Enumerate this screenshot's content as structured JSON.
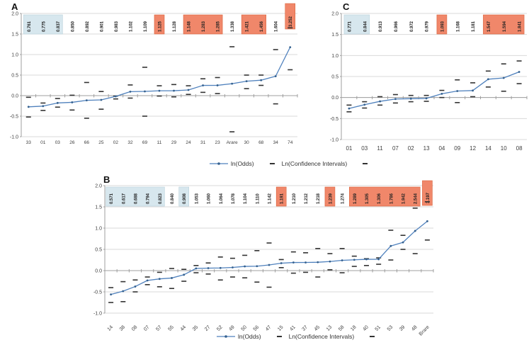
{
  "figure": {
    "panel_A": "A",
    "panel_B": "B",
    "panel_C": "C"
  },
  "legend": {
    "odds": "ln(Odds)",
    "ci": "Ln(Confidence Intervals)",
    "dash": "-"
  },
  "colors": {
    "line": "#4f81bd",
    "ci_dash": "#333333",
    "box_blue": "#d7e7ee",
    "box_blue_border": "#b9d2dc",
    "box_red": "#f0876a",
    "box_red_border": "#d9643e",
    "gridline": "#d9d9d9",
    "axis": "#9f9f9f",
    "text": "#404040"
  },
  "chart_data": [
    {
      "id": "A",
      "type": "line",
      "title": "",
      "xlabel": "",
      "ylabel": "",
      "ylim": [
        -1.0,
        2.0
      ],
      "grid": true,
      "legend_position": "bottom",
      "y_ticks": [
        "2.0",
        "1.5",
        "1.0",
        "0.5",
        "0.0",
        "-0.5",
        "-1.0"
      ],
      "categories": [
        "33",
        "01",
        "03",
        "26",
        "66",
        "25",
        "02",
        "32",
        "69",
        "11",
        "29",
        "24",
        "31",
        "23",
        "Arare",
        "30",
        "68",
        "34",
        "74"
      ],
      "odds_labels": [
        "0.761",
        "0.775",
        "0.837",
        "0.850",
        "0.892",
        "0.901",
        "0.983",
        "1.102",
        "1.109",
        "1.125",
        "1.128",
        "1.148",
        "1.283",
        "1.285",
        "1.338",
        "1.421",
        "1.456",
        "1.604",
        "3.252"
      ],
      "box_colors": [
        "blue",
        "blue",
        "blue",
        "white",
        "white",
        "white",
        "white",
        "white",
        "white",
        "red",
        "white",
        "red",
        "red",
        "red",
        "white",
        "red",
        "red",
        "white",
        "red"
      ],
      "tall_last_box": true,
      "series": [
        {
          "name": "ln(Odds)",
          "values": [
            -0.273,
            -0.255,
            -0.178,
            -0.163,
            -0.114,
            -0.104,
            -0.017,
            0.097,
            0.103,
            0.118,
            0.12,
            0.138,
            0.249,
            0.251,
            0.291,
            0.351,
            0.376,
            0.472,
            1.179
          ]
        },
        {
          "name": "CI upper",
          "values": [
            -0.04,
            -0.18,
            -0.07,
            0.01,
            0.32,
            0.1,
            -0.01,
            0.26,
            0.69,
            0.24,
            0.27,
            0.24,
            0.41,
            0.44,
            1.19,
            0.5,
            0.5,
            1.12,
            1.65
          ]
        },
        {
          "name": "CI lower",
          "values": [
            -0.52,
            -0.36,
            -0.28,
            -0.35,
            -0.55,
            -0.33,
            -0.08,
            -0.06,
            -0.5,
            -0.01,
            -0.03,
            0.03,
            0.08,
            0.05,
            -0.88,
            0.17,
            0.25,
            -0.2,
            0.63
          ]
        }
      ]
    },
    {
      "id": "C",
      "type": "line",
      "title": "",
      "xlabel": "",
      "ylabel": "",
      "ylim": [
        -1.0,
        2.0
      ],
      "grid": true,
      "legend_position": "none",
      "y_ticks": [
        "2.0",
        "1.5",
        "1.0",
        "0.5",
        "0.0",
        "-0.5",
        "-1.0"
      ],
      "categories": [
        "01",
        "03",
        "11",
        "07",
        "02",
        "13",
        "04",
        "09",
        "12",
        "14",
        "10",
        "08"
      ],
      "odds_labels": [
        "0.771",
        "0.844",
        "0.913",
        "0.966",
        "0.972",
        "0.979",
        "1.093",
        "1.168",
        "1.181",
        "1.547",
        "1.594",
        "1.841"
      ],
      "box_colors": [
        "blue",
        "blue",
        "white",
        "white",
        "white",
        "white",
        "red",
        "white",
        "white",
        "red",
        "red",
        "red"
      ],
      "tall_last_box": false,
      "series": [
        {
          "name": "ln(Odds)",
          "values": [
            -0.26,
            -0.17,
            -0.091,
            -0.035,
            -0.028,
            -0.021,
            0.089,
            0.155,
            0.166,
            0.436,
            0.466,
            0.61
          ]
        },
        {
          "name": "CI upper",
          "values": [
            -0.18,
            -0.1,
            0.02,
            0.07,
            0.05,
            0.05,
            0.17,
            0.42,
            0.35,
            0.63,
            0.8,
            0.87
          ]
        },
        {
          "name": "CI lower",
          "values": [
            -0.34,
            -0.25,
            -0.18,
            -0.13,
            -0.1,
            -0.09,
            0.0,
            -0.12,
            0.02,
            0.25,
            0.15,
            0.33
          ]
        }
      ]
    },
    {
      "id": "B",
      "type": "line",
      "title": "",
      "xlabel": "",
      "ylabel": "",
      "ylim": [
        -1.0,
        2.0
      ],
      "grid": true,
      "legend_position": "bottom",
      "y_ticks": [
        "2.0",
        "1.5",
        "1.0",
        "0.5",
        "0.0",
        "-0.5",
        "-1.0"
      ],
      "categories": [
        "14",
        "38",
        "08",
        "07",
        "57",
        "55",
        "44",
        "35",
        "27",
        "52",
        "49",
        "50",
        "56",
        "47",
        "15",
        "41",
        "37",
        "45",
        "13",
        "58",
        "18",
        "40",
        "51",
        "53",
        "39",
        "48",
        "Brare"
      ],
      "odds_labels": [
        "0.571",
        "0.617",
        "0.688",
        "0.794",
        "0.823",
        "0.840",
        "0.908",
        "1.053",
        "1.060",
        "1.064",
        "1.078",
        "1.104",
        "1.110",
        "1.142",
        "1.191",
        "1.210",
        "1.212",
        "1.218",
        "1.239",
        "1.274",
        "1.289",
        "1.305",
        "1.306",
        "1.786",
        "1.942",
        "2.544",
        "3.197"
      ],
      "box_colors": [
        "blue",
        "blue",
        "blue",
        "blue",
        "blue",
        "white",
        "blue",
        "white",
        "white",
        "white",
        "white",
        "white",
        "white",
        "white",
        "red",
        "white",
        "white",
        "white",
        "red",
        "white",
        "red",
        "red",
        "red",
        "red",
        "red",
        "red",
        "red"
      ],
      "tall_last_box": true,
      "series": [
        {
          "name": "ln(Odds)",
          "values": [
            -0.56,
            -0.483,
            -0.374,
            -0.231,
            -0.195,
            -0.174,
            -0.097,
            0.052,
            0.058,
            0.062,
            0.075,
            0.099,
            0.104,
            0.133,
            0.175,
            0.191,
            0.192,
            0.197,
            0.214,
            0.242,
            0.254,
            0.266,
            0.267,
            0.58,
            0.664,
            0.934,
            1.162
          ]
        },
        {
          "name": "CI upper",
          "values": [
            -0.4,
            -0.26,
            -0.22,
            -0.15,
            -0.04,
            0.05,
            0.03,
            0.12,
            0.18,
            0.32,
            0.29,
            0.36,
            0.47,
            0.65,
            0.26,
            0.44,
            0.42,
            0.52,
            0.4,
            0.52,
            0.34,
            0.28,
            0.3,
            0.95,
            0.83,
            1.47,
            1.62
          ]
        },
        {
          "name": "CI lower",
          "values": [
            -0.75,
            -0.73,
            -0.5,
            -0.33,
            -0.38,
            -0.42,
            -0.25,
            -0.05,
            -0.08,
            -0.22,
            -0.15,
            -0.17,
            -0.27,
            -0.39,
            0.07,
            -0.06,
            -0.04,
            -0.15,
            0.02,
            -0.05,
            0.1,
            0.12,
            0.15,
            0.25,
            0.5,
            0.4,
            0.72
          ]
        }
      ]
    }
  ]
}
